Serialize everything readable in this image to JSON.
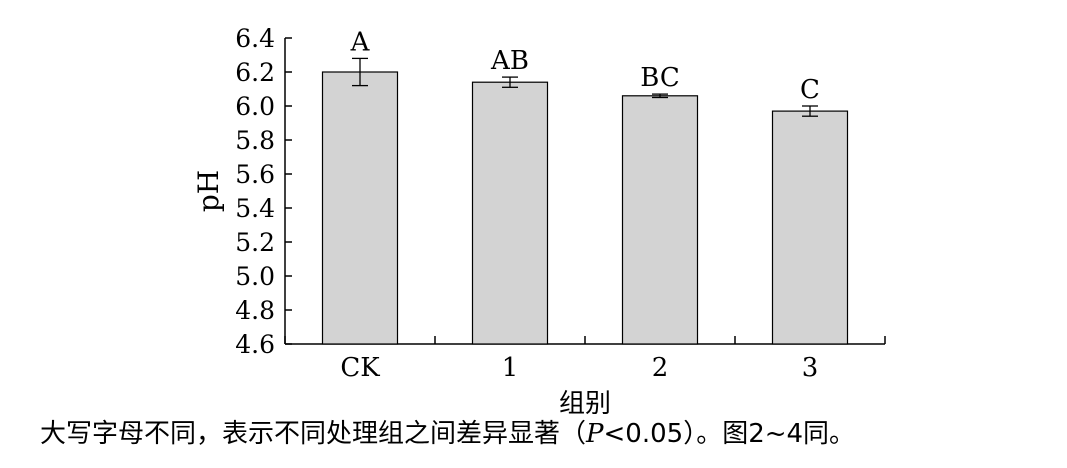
{
  "chart_data": {
    "type": "bar",
    "categories": [
      "CK",
      "1",
      "2",
      "3"
    ],
    "values": [
      6.2,
      6.14,
      6.06,
      5.97
    ],
    "errors": [
      0.08,
      0.03,
      0.01,
      0.03
    ],
    "significance_labels": [
      "A",
      "AB",
      "BC",
      "C"
    ],
    "title": "",
    "xlabel": "组别",
    "ylabel": "pH",
    "ylim": [
      4.6,
      6.4
    ],
    "yticks": [
      "4.6",
      "4.8",
      "5.0",
      "5.2",
      "5.4",
      "5.6",
      "5.8",
      "6.0",
      "6.2",
      "6.4"
    ],
    "bar_color": "#d3d3d3",
    "bar_edge_color": "#000000",
    "grid": false,
    "legend": "none"
  },
  "footnote": {
    "before_p": "大写字母不同，表示不同处理组之间差异显著（",
    "p_symbol": "P",
    "after_p": "<0.05）。图2~4同。"
  }
}
